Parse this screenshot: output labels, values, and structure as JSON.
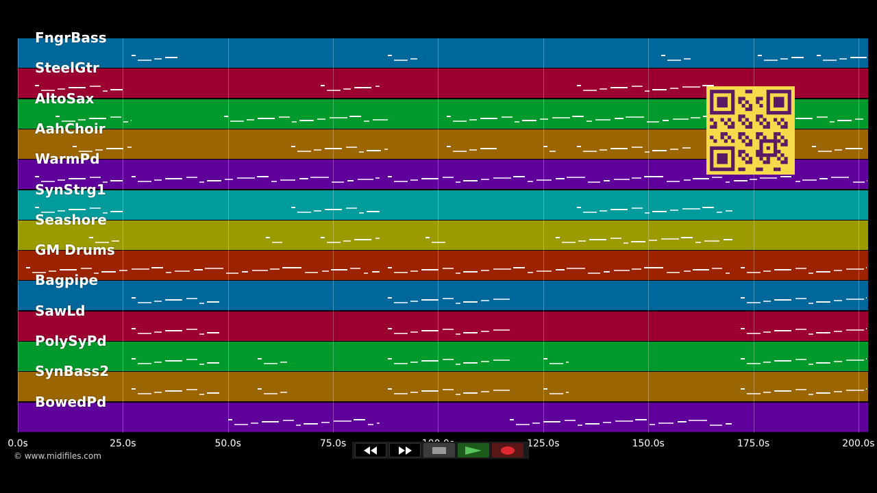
{
  "tracks": [
    {
      "name": "FngrBass",
      "color": "#00679b"
    },
    {
      "name": "SteelGtr",
      "color": "#9b0030"
    },
    {
      "name": "AltoSax",
      "color": "#00992b"
    },
    {
      "name": "AahChoir",
      "color": "#9b6500"
    },
    {
      "name": "WarmPd",
      "color": "#60009b"
    },
    {
      "name": "SynStrg1",
      "color": "#009b9b"
    },
    {
      "name": "Seashore",
      "color": "#9b9b00"
    },
    {
      "name": "GM Drums",
      "color": "#9b2300"
    },
    {
      "name": "Bagpipe",
      "color": "#00679b"
    },
    {
      "name": "SawLd",
      "color": "#9b0030"
    },
    {
      "name": "PolySyPd",
      "color": "#00992b"
    },
    {
      "name": "SynBass2",
      "color": "#9b6500"
    },
    {
      "name": "BowedPd",
      "color": "#60009b"
    }
  ],
  "time_axis": {
    "ticks": [
      "0.0s",
      "25.0s",
      "50.0s",
      "75.0s",
      "100.0s",
      "125.0s",
      "150.0s",
      "175.0s",
      "200.0s"
    ],
    "tick_seconds": [
      0,
      25,
      50,
      75,
      100,
      125,
      150,
      175,
      200
    ],
    "max_seconds": 202.3
  },
  "notes": [
    {
      "track": 0,
      "spans": [
        [
          27,
          38
        ],
        [
          88,
          95
        ],
        [
          153,
          160
        ],
        [
          176,
          187
        ],
        [
          190,
          202
        ]
      ]
    },
    {
      "track": 1,
      "spans": [
        [
          4,
          25
        ],
        [
          72,
          86
        ],
        [
          133,
          170
        ]
      ]
    },
    {
      "track": 2,
      "spans": [
        [
          9,
          27
        ],
        [
          49,
          88
        ],
        [
          102,
          166
        ],
        [
          177,
          202
        ]
      ]
    },
    {
      "track": 3,
      "spans": [
        [
          13,
          27
        ],
        [
          65,
          88
        ],
        [
          102,
          114
        ],
        [
          125,
          128
        ],
        [
          133,
          160
        ],
        [
          189,
          202
        ]
      ]
    },
    {
      "track": 4,
      "spans": [
        [
          4,
          25
        ],
        [
          27,
          86
        ],
        [
          88,
          202
        ]
      ]
    },
    {
      "track": 5,
      "spans": [
        [
          4,
          25
        ],
        [
          65,
          86
        ],
        [
          133,
          170
        ]
      ]
    },
    {
      "track": 6,
      "spans": [
        [
          17,
          25
        ],
        [
          59,
          63
        ],
        [
          72,
          86
        ],
        [
          97,
          102
        ],
        [
          128,
          170
        ]
      ]
    },
    {
      "track": 7,
      "spans": [
        [
          2,
          86
        ],
        [
          88,
          170
        ],
        [
          172,
          202
        ]
      ]
    },
    {
      "track": 8,
      "spans": [
        [
          27,
          48
        ],
        [
          88,
          117
        ],
        [
          172,
          202
        ]
      ]
    },
    {
      "track": 9,
      "spans": [
        [
          27,
          48
        ],
        [
          88,
          117
        ],
        [
          172,
          202
        ]
      ]
    },
    {
      "track": 10,
      "spans": [
        [
          27,
          48
        ],
        [
          57,
          64
        ],
        [
          88,
          117
        ],
        [
          125,
          131
        ],
        [
          172,
          202
        ]
      ]
    },
    {
      "track": 11,
      "spans": [
        [
          27,
          48
        ],
        [
          57,
          64
        ],
        [
          88,
          117
        ],
        [
          125,
          131
        ],
        [
          172,
          202
        ]
      ]
    },
    {
      "track": 12,
      "spans": [
        [
          50,
          86
        ],
        [
          117,
          170
        ]
      ]
    }
  ],
  "copyright": "© www.midifiles.com",
  "qr": {
    "label": "qr-code"
  },
  "transport": {
    "rewind_icon": "rewind-icon",
    "fastforward_icon": "fast-forward-icon",
    "stop_icon": "stop-icon",
    "play_icon": "play-icon",
    "record_icon": "record-icon"
  }
}
